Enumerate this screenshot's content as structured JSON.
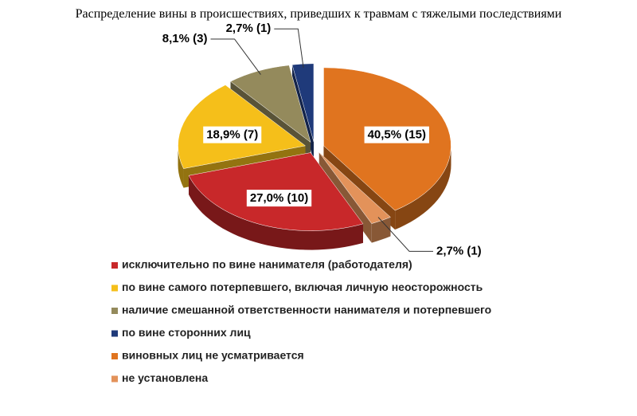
{
  "chart_data": {
    "type": "pie",
    "title": "Распределение вины в происшествиях, приведших к травмам с тяжелыми последствиями",
    "categories": [
      "исключительно по вине нанимателя (работодателя)",
      "по вине самого потерпевшего, включая личную неосторожность",
      "наличие смешанной ответственности нанимателя и потерпевшего",
      "по вине сторонних лиц",
      "виновных лиц не усматривается",
      "не установлена"
    ],
    "values": [
      27.0,
      18.9,
      8.1,
      2.7,
      40.5,
      2.7
    ],
    "value_labels": [
      "27,0% (10)",
      "18,9% (7)",
      "8,1% (3)",
      "2,7% (1)",
      "40,5% (15)",
      "2,7% (1)"
    ],
    "colors": [
      "#c8282a",
      "#f5bf1a",
      "#948a5c",
      "#1f3a7a",
      "#e0741f",
      "#e3925a"
    ],
    "legend": "bottom"
  }
}
